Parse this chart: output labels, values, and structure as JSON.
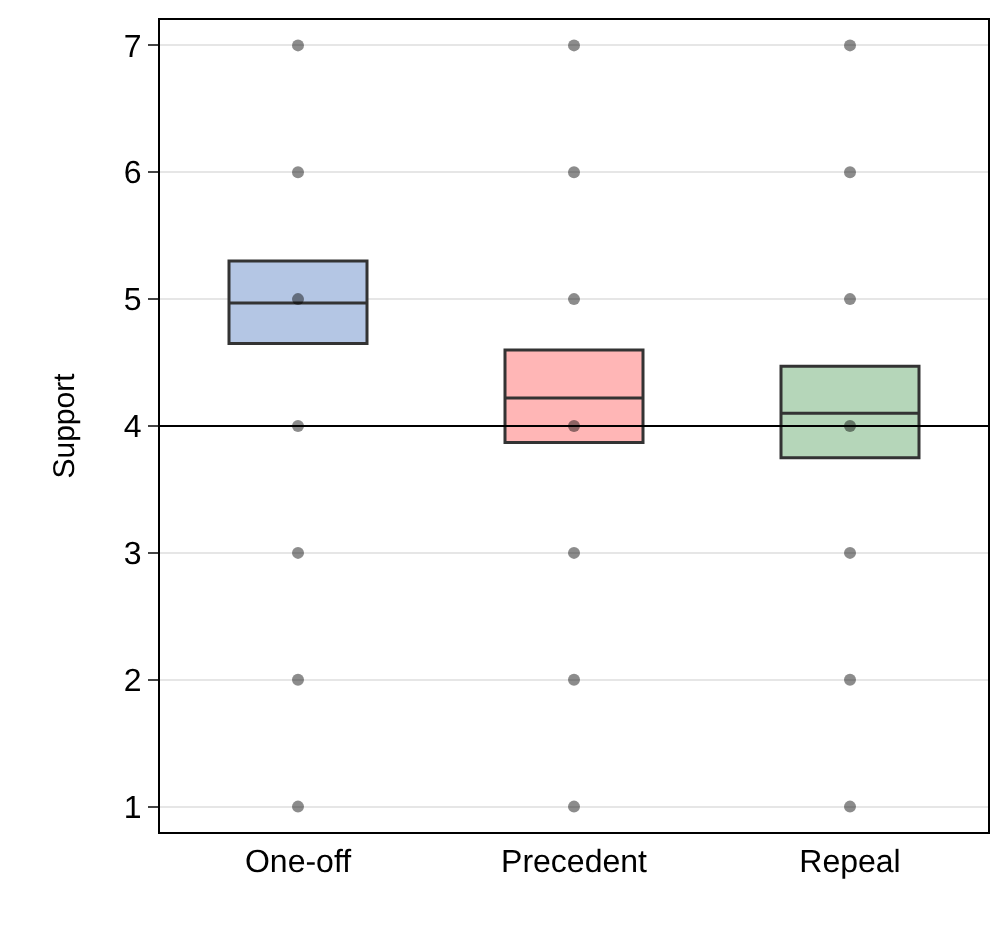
{
  "chart_data": {
    "type": "box",
    "ylabel": "Support",
    "categories": [
      "One-off",
      "Precedent",
      "Repeal"
    ],
    "colors": [
      "#b4c6e4",
      "#ffb6b6",
      "#b5d6b9"
    ],
    "boxes": [
      {
        "low": 4.65,
        "q1": 4.65,
        "median": 4.97,
        "q3": 5.3,
        "high": 5.3
      },
      {
        "low": 3.87,
        "q1": 3.87,
        "median": 4.22,
        "q3": 4.6,
        "high": 4.6
      },
      {
        "low": 3.75,
        "q1": 3.75,
        "median": 4.1,
        "q3": 4.47,
        "high": 4.47
      }
    ],
    "series": [
      {
        "type": "scatter",
        "color": "#000000",
        "x": [
          "One-off",
          "One-off",
          "One-off",
          "One-off",
          "One-off",
          "One-off",
          "One-off",
          "Precedent",
          "Precedent",
          "Precedent",
          "Precedent",
          "Precedent",
          "Precedent",
          "Precedent",
          "Repeal",
          "Repeal",
          "Repeal",
          "Repeal",
          "Repeal",
          "Repeal",
          "Repeal"
        ],
        "values": [
          1,
          2,
          3,
          4,
          5,
          6,
          7,
          1,
          2,
          3,
          4,
          5,
          6,
          7,
          1,
          2,
          3,
          4,
          5,
          6,
          7
        ]
      }
    ],
    "ref_lines": [
      {
        "axis": "y",
        "value": 4,
        "color": "#000000"
      }
    ],
    "ylim": [
      0.8,
      7.2
    ],
    "yticks": [
      1,
      2,
      3,
      4,
      5,
      6,
      7
    ],
    "grid": "y",
    "marker": "circle"
  }
}
